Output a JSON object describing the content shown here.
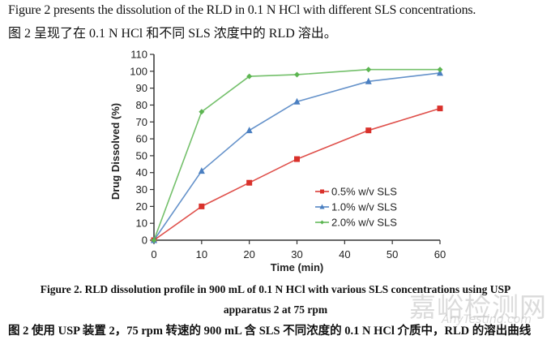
{
  "intro": {
    "english": "Figure 2 presents the dissolution of the RLD in 0.1 N HCl with different SLS concentrations.",
    "chinese": "图 2 呈现了在 0.1 N HCl 和不同 SLS 浓度中的 RLD 溶出。"
  },
  "chart_data": {
    "type": "line",
    "title": "",
    "xlabel": "Time (min)",
    "ylabel": "Drug Dissolved (%)",
    "x": [
      0,
      10,
      20,
      30,
      45,
      60
    ],
    "xlim": [
      0,
      60
    ],
    "ylim": [
      0,
      110
    ],
    "xticks": [
      0,
      10,
      20,
      30,
      40,
      50,
      60
    ],
    "yticks": [
      0,
      10,
      20,
      30,
      40,
      50,
      60,
      70,
      80,
      90,
      100,
      110
    ],
    "grid": false,
    "legend_position": "center-right",
    "series": [
      {
        "name": "0.5% w/v SLS",
        "color": "#d9312b",
        "marker": "square",
        "values": [
          0,
          20,
          34,
          48,
          65,
          78
        ]
      },
      {
        "name": "1.0% w/v SLS",
        "color": "#4a7fc1",
        "marker": "triangle",
        "values": [
          0,
          41,
          65,
          82,
          94,
          99
        ]
      },
      {
        "name": "2.0% w/v SLS",
        "color": "#5cb551",
        "marker": "diamond",
        "values": [
          0,
          76,
          97,
          98,
          101,
          101
        ]
      }
    ]
  },
  "caption": {
    "english_line1": "Figure 2. RLD dissolution profile in 900 mL of 0.1 N HCl with various SLS concentrations using USP",
    "english_line2": "apparatus 2 at 75 rpm",
    "chinese": "图 2 使用 USP 装置 2，75 rpm 转速的 900 mL  含 SLS 不同浓度的 0.1 N HCl 介质中，RLD 的溶出曲线"
  },
  "watermark": {
    "chinese": "嘉峪检测网",
    "english": "AnyTesting.com"
  }
}
